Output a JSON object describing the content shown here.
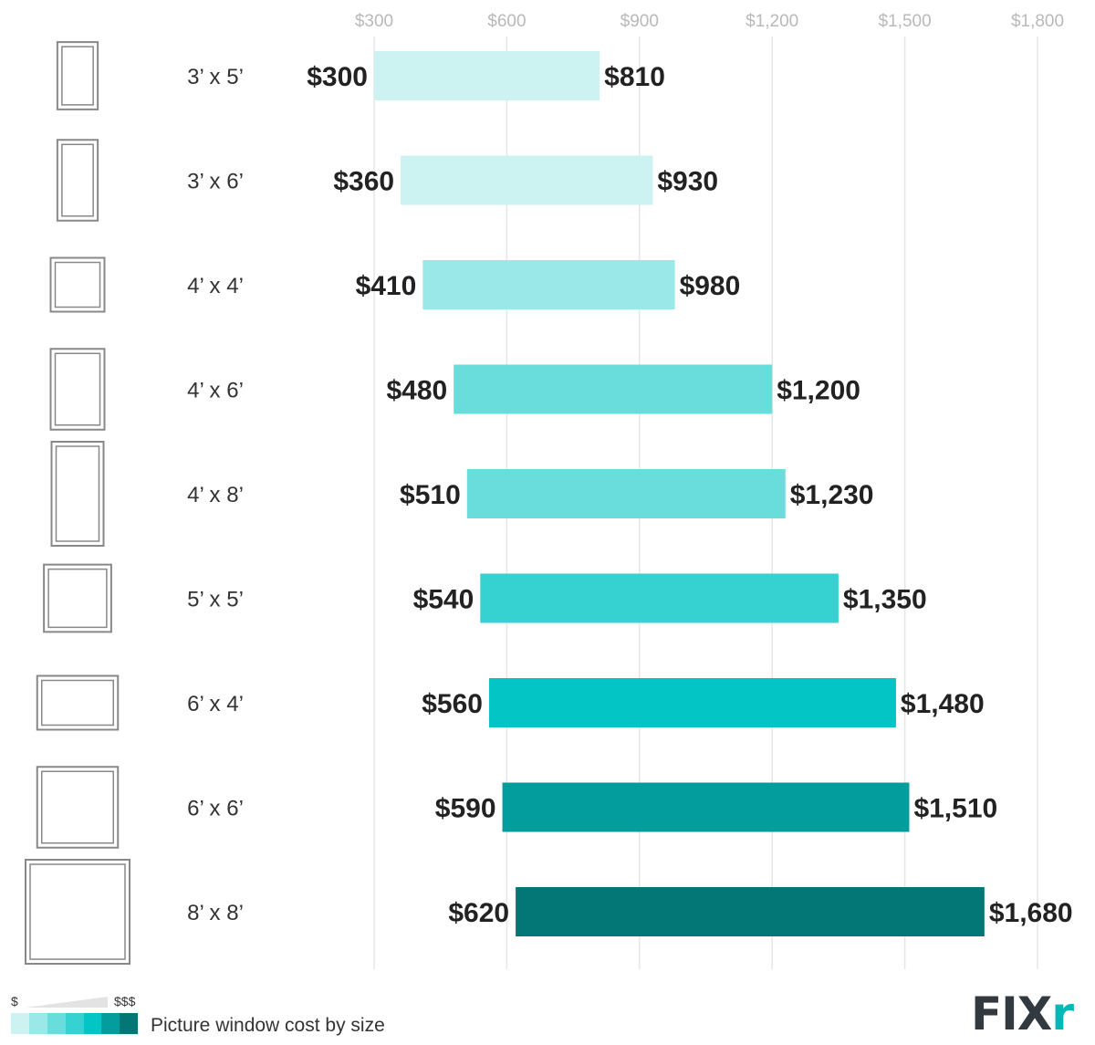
{
  "chart_data": {
    "type": "bar",
    "orientation": "horizontal-range",
    "title": "Picture window cost by size",
    "x_ticks": [
      "$300",
      "$600",
      "$900",
      "$1,200",
      "$1,500",
      "$1,800"
    ],
    "xlim": [
      300,
      1800
    ],
    "grid": true,
    "categories": [
      "3’ x 5’",
      "3’ x 6’",
      "4’ x 4’",
      "4’ x 6’",
      "4’ x 8’",
      "5’ x 5’",
      "6’ x 4’",
      "6’ x 6’",
      "8’ x 8’"
    ],
    "low_values": [
      300,
      360,
      410,
      480,
      510,
      540,
      560,
      590,
      620
    ],
    "high_values": [
      810,
      930,
      980,
      1200,
      1230,
      1350,
      1480,
      1510,
      1680
    ],
    "low_labels": [
      "$300",
      "$360",
      "$410",
      "$480",
      "$510",
      "$540",
      "$560",
      "$590",
      "$620"
    ],
    "high_labels": [
      "$810",
      "$930",
      "$980",
      "$1,200",
      "$1,230",
      "$1,350",
      "$1,480",
      "$1,510",
      "$1,680"
    ],
    "window_dimensions_ft": [
      [
        3,
        5
      ],
      [
        3,
        6
      ],
      [
        4,
        4
      ],
      [
        4,
        6
      ],
      [
        4,
        8
      ],
      [
        5,
        5
      ],
      [
        6,
        4
      ],
      [
        6,
        6
      ],
      [
        8,
        8
      ]
    ],
    "bar_colors": [
      "#ccf2f2",
      "#ccf2f2",
      "#9ae8e8",
      "#69dcdc",
      "#69dcdc",
      "#36d1d1",
      "#04c5c5",
      "#039d9d",
      "#037676"
    ]
  },
  "legend": {
    "low_label": "$",
    "high_label": "$$$",
    "title": "Picture window cost by size",
    "swatch_colors": [
      "#ccf2f2",
      "#9ae8e8",
      "#69dcdc",
      "#36d1d1",
      "#04c5c5",
      "#039d9d",
      "#037676"
    ]
  },
  "branding": {
    "logo_text": "FIXr"
  }
}
